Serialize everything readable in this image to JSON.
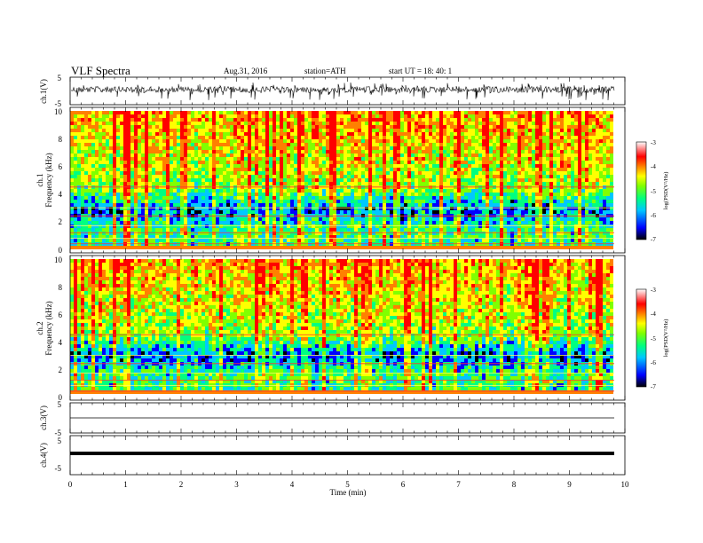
{
  "header": {
    "title": "VLF  Spectra",
    "date": "Aug.31, 2016",
    "station": "station=ATH",
    "start": "start  UT =    18: 40: 1"
  },
  "chart_data": [
    {
      "type": "line",
      "name": "ch1-waveform",
      "ylabel": "ch.1(V)",
      "ylim": [
        -5,
        5
      ],
      "yticks": [
        "5",
        "-5"
      ],
      "xlim": [
        0,
        10
      ]
    },
    {
      "type": "heatmap",
      "name": "ch1-spectrogram",
      "ylabel_top": "ch.1",
      "ylabel": "Frequency  (kHz)",
      "ylim": [
        0,
        10
      ],
      "yticks": [
        "0",
        "2",
        "4",
        "6",
        "8",
        "10"
      ],
      "xlim": [
        0,
        10
      ],
      "colorbar": {
        "label": "log(PSD(V²/Hz)",
        "range": [
          -7,
          -3
        ],
        "ticks": [
          "-3",
          "-4",
          "-5",
          "-6",
          "-7"
        ]
      }
    },
    {
      "type": "heatmap",
      "name": "ch2-spectrogram",
      "ylabel_top": "ch.2",
      "ylabel": "Frequency  (kHz)",
      "ylim": [
        0,
        10
      ],
      "yticks": [
        "0",
        "2",
        "4",
        "6",
        "8",
        "10"
      ],
      "xlim": [
        0,
        10
      ],
      "colorbar": {
        "label": "log(PSD(V²/Hz)",
        "range": [
          -7,
          -3
        ],
        "ticks": [
          "-3",
          "-4",
          "-5",
          "-6",
          "-7"
        ]
      }
    },
    {
      "type": "line",
      "name": "ch3-waveform",
      "ylabel": "ch.3(V)",
      "ylim": [
        -5,
        5
      ],
      "yticks": [
        "5",
        "-5"
      ],
      "xlim": [
        0,
        10
      ]
    },
    {
      "type": "line",
      "name": "ch4-waveform",
      "ylabel": "ch.4(V)",
      "ylim": [
        -5,
        5
      ],
      "yticks": [
        "5",
        "-5"
      ],
      "xlim": [
        0,
        10
      ],
      "xlabel": "Time  (min)",
      "xticks": [
        "0",
        "1",
        "2",
        "3",
        "4",
        "5",
        "6",
        "7",
        "8",
        "9",
        "10"
      ]
    }
  ],
  "colors": {
    "scale": [
      "#000000",
      "#0000ff",
      "#00c8ff",
      "#00ff80",
      "#80ff00",
      "#ffff00",
      "#ff8000",
      "#ff0000",
      "#ffffff"
    ]
  }
}
